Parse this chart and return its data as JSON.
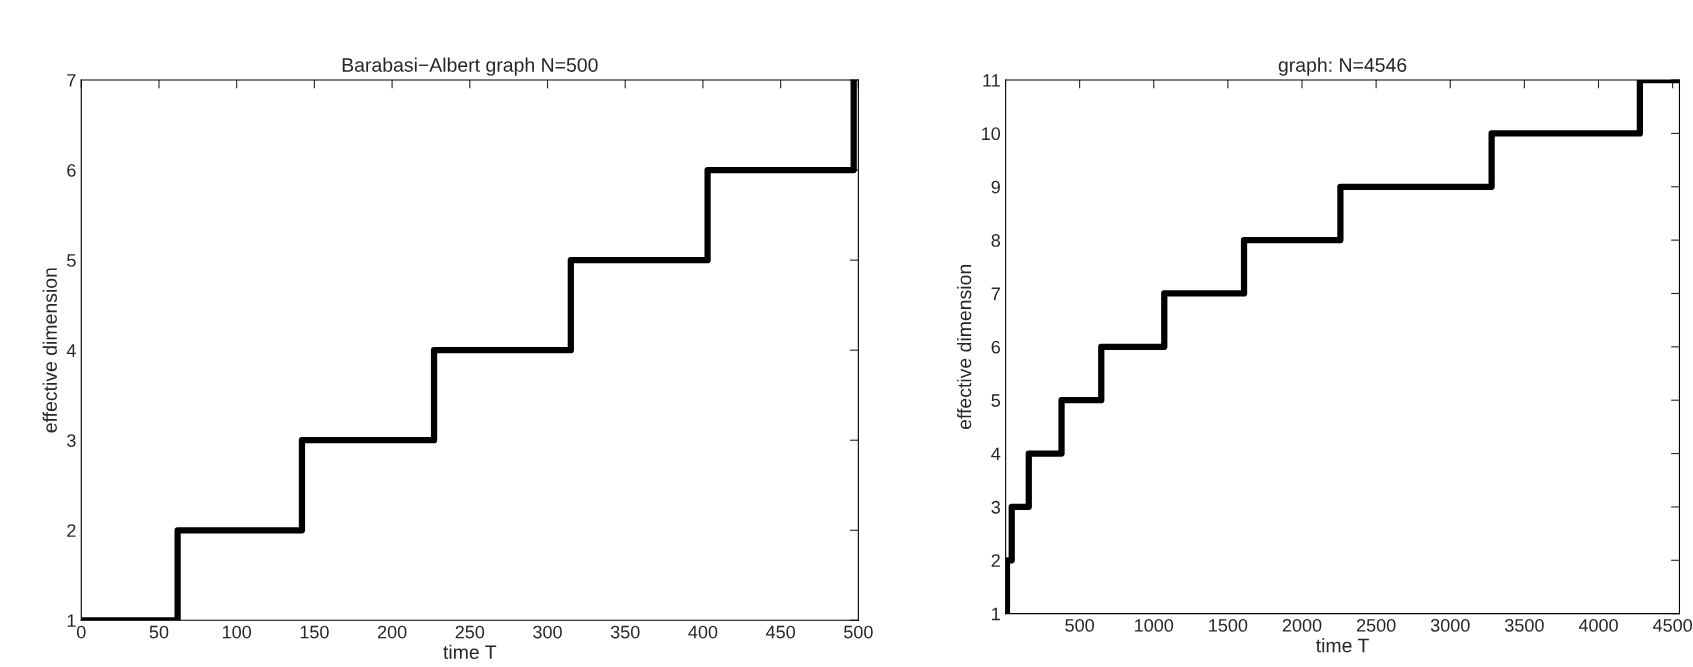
{
  "chart_data": [
    {
      "type": "step",
      "title": "Barabasi−Albert graph N=500",
      "xlabel": "time T",
      "ylabel": "effective dimension",
      "x": [
        0,
        62,
        142,
        227,
        315,
        403,
        497
      ],
      "values": [
        1,
        2,
        3,
        4,
        5,
        6,
        7
      ],
      "color": "#000000",
      "xlim": [
        0,
        500
      ],
      "ylim": [
        1,
        7
      ],
      "xticks": [
        0,
        50,
        100,
        150,
        200,
        250,
        300,
        350,
        400,
        450,
        500
      ],
      "yticks": [
        1,
        2,
        3,
        4,
        5,
        6,
        7
      ],
      "grid": false
    },
    {
      "type": "step",
      "title": "graph: N=4546",
      "xlabel": "time T",
      "ylabel": "effective dimension",
      "x": [
        1,
        10,
        42,
        157,
        378,
        646,
        1071,
        1609,
        2259,
        3279,
        4279,
        4546
      ],
      "values": [
        1,
        2,
        3,
        4,
        5,
        6,
        7,
        8,
        9,
        10,
        11,
        11
      ],
      "color": "#000000",
      "xlim": [
        1,
        4546
      ],
      "ylim": [
        1,
        11
      ],
      "xticks": [
        500,
        1000,
        1500,
        2000,
        2500,
        3000,
        3500,
        4000,
        4500
      ],
      "yticks": [
        1,
        2,
        3,
        4,
        5,
        6,
        7,
        8,
        9,
        10,
        11
      ],
      "grid": false
    }
  ]
}
